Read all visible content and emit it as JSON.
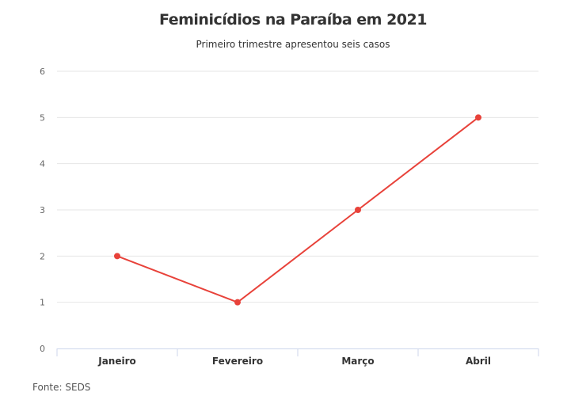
{
  "chart_data": {
    "type": "line",
    "title": "Feminicídios na Paraíba em 2021",
    "subtitle": "Primeiro trimestre apresentou seis casos",
    "categories": [
      "Janeiro",
      "Fevereiro",
      "Março",
      "Abril"
    ],
    "values": [
      2,
      1,
      3,
      5
    ],
    "ylim": [
      0,
      6
    ],
    "yticks": [
      "0",
      "1",
      "2",
      "3",
      "4",
      "5",
      "6"
    ],
    "xlabel": "",
    "ylabel": "",
    "grid": true,
    "legend": "none",
    "line_color": "#e8423a"
  },
  "source": "Fonte: SEDS"
}
